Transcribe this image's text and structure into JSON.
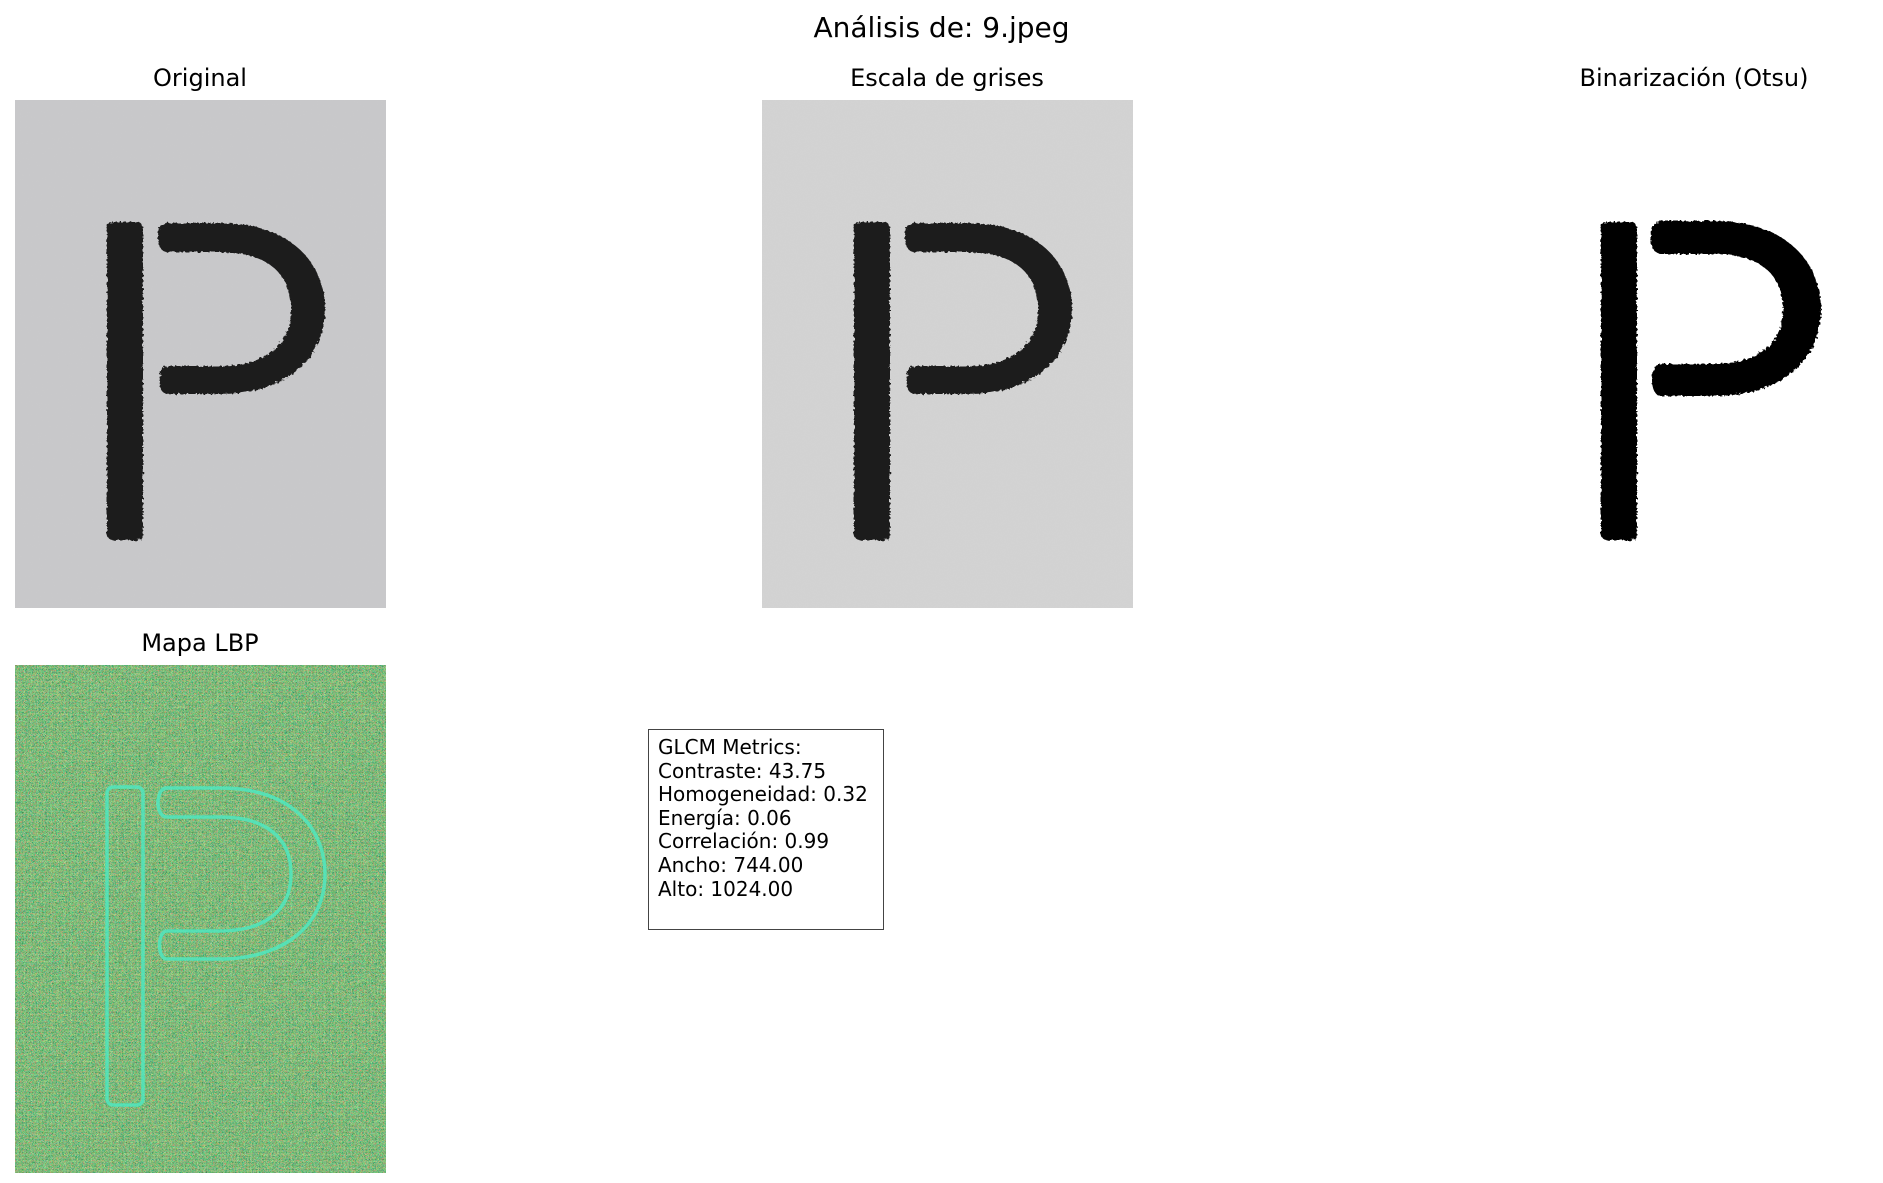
{
  "figure": {
    "title": "Análisis de: 9.jpeg"
  },
  "panels": {
    "original": {
      "title": "Original",
      "icon": "letter-p-photo"
    },
    "grayscale": {
      "title": "Escala de grises",
      "icon": "letter-p-grayscale"
    },
    "binarization": {
      "title": "Binarización (Otsu)",
      "icon": "letter-p-binary"
    },
    "lbp": {
      "title": "Mapa LBP",
      "icon": "letter-p-lbp-map"
    }
  },
  "metrics": {
    "heading": "GLCM Metrics:",
    "lines": [
      "Contraste: 43.75",
      "Homogeneidad: 0.32",
      "Energía: 0.06",
      "Correlación: 0.99",
      "Ancho: 744.00",
      "Alto: 1024.00"
    ]
  },
  "colors": {
    "paper": "#c9c9cb",
    "paper_gray": "#d4d4d4",
    "ink": "#1c1c1c",
    "binary_ink": "#000000",
    "lbp_green": "#7dbb5a",
    "lbp_cyan": "#4fe7c0",
    "lbp_red": "#c0432a"
  }
}
